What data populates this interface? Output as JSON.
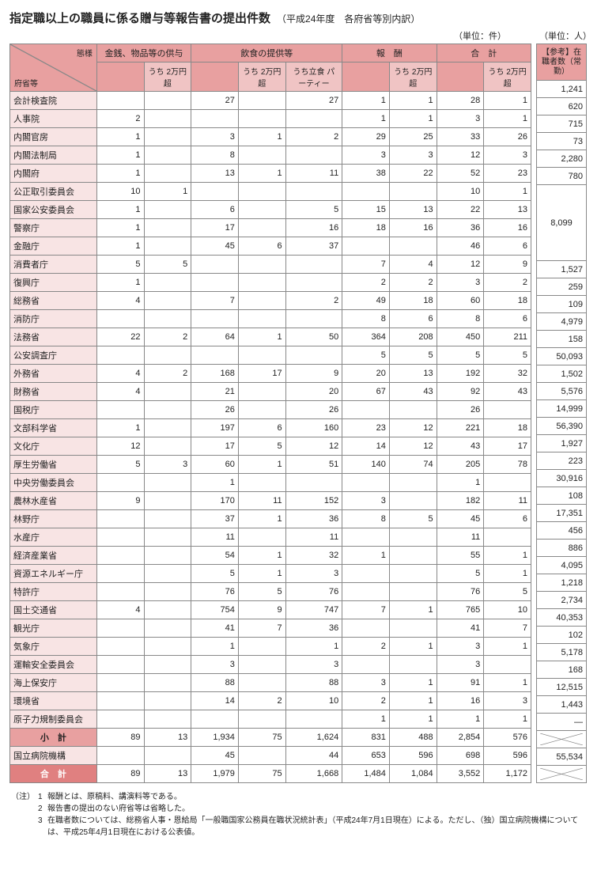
{
  "title": "指定職以上の職員に係る贈与等報告書の提出件数",
  "subtitle": "（平成24年度　各府省等別内訳）",
  "unit1": "（単位：件）",
  "unit2": "（単位：人）",
  "diag_top": "態様",
  "diag_bottom": "府省等",
  "col_groups": {
    "g1": "金銭、物品等の供与",
    "g2": "飲食の提供等",
    "g3": "報　酬",
    "g4": "合　計",
    "ref": "【参考】在職者数（常勤）"
  },
  "sub": {
    "over20k": "うち\n2万円超",
    "party": "うち立食\nパーティー"
  },
  "colors": {
    "hdr": "#e8a0a0",
    "hdr_sub": "#f0c4c4",
    "rowhdr": "#f8e4e4",
    "subtotal": "#e8a0a0",
    "total": "#e08080",
    "border": "#888888"
  },
  "rows": [
    {
      "name": "会計検査院",
      "c": [
        "",
        "",
        "27",
        "",
        "27",
        "1",
        "1",
        "28",
        "1"
      ],
      "ref": "1,241"
    },
    {
      "name": "人事院",
      "c": [
        "2",
        "",
        "",
        "",
        "",
        "1",
        "1",
        "3",
        "1"
      ],
      "ref": "620"
    },
    {
      "name": "内閣官房",
      "c": [
        "1",
        "",
        "3",
        "1",
        "2",
        "29",
        "25",
        "33",
        "26"
      ],
      "ref": "715"
    },
    {
      "name": "内閣法制局",
      "c": [
        "1",
        "",
        "8",
        "",
        "",
        "3",
        "3",
        "12",
        "3"
      ],
      "ref": "73"
    },
    {
      "name": "内閣府",
      "c": [
        "1",
        "",
        "13",
        "1",
        "11",
        "38",
        "22",
        "52",
        "23"
      ],
      "ref": "2,280"
    },
    {
      "name": "公正取引委員会",
      "c": [
        "10",
        "1",
        "",
        "",
        "",
        "",
        "",
        "10",
        "1"
      ],
      "ref": "780"
    },
    {
      "name": "国家公安委員会",
      "c": [
        "1",
        "",
        "6",
        "",
        "5",
        "15",
        "13",
        "22",
        "13"
      ],
      "ref": "",
      "merge": "down"
    },
    {
      "name": "警察庁",
      "c": [
        "1",
        "",
        "17",
        "",
        "16",
        "18",
        "16",
        "36",
        "16"
      ],
      "ref": "8,099",
      "merge": "up"
    },
    {
      "name": "金融庁",
      "c": [
        "1",
        "",
        "45",
        "6",
        "37",
        "",
        "",
        "46",
        "6"
      ],
      "ref": "1,527"
    },
    {
      "name": "消費者庁",
      "c": [
        "5",
        "5",
        "",
        "",
        "",
        "7",
        "4",
        "12",
        "9"
      ],
      "ref": "259"
    },
    {
      "name": "復興庁",
      "c": [
        "1",
        "",
        "",
        "",
        "",
        "2",
        "2",
        "3",
        "2"
      ],
      "ref": "109"
    },
    {
      "name": "総務省",
      "c": [
        "4",
        "",
        "7",
        "",
        "2",
        "49",
        "18",
        "60",
        "18"
      ],
      "ref": "4,979"
    },
    {
      "name": "消防庁",
      "c": [
        "",
        "",
        "",
        "",
        "",
        "8",
        "6",
        "8",
        "6"
      ],
      "ref": "158"
    },
    {
      "name": "法務省",
      "c": [
        "22",
        "2",
        "64",
        "1",
        "50",
        "364",
        "208",
        "450",
        "211"
      ],
      "ref": "50,093"
    },
    {
      "name": "公安調査庁",
      "c": [
        "",
        "",
        "",
        "",
        "",
        "5",
        "5",
        "5",
        "5"
      ],
      "ref": "1,502"
    },
    {
      "name": "外務省",
      "c": [
        "4",
        "2",
        "168",
        "17",
        "9",
        "20",
        "13",
        "192",
        "32"
      ],
      "ref": "5,576"
    },
    {
      "name": "財務省",
      "c": [
        "4",
        "",
        "21",
        "",
        "20",
        "67",
        "43",
        "92",
        "43"
      ],
      "ref": "14,999"
    },
    {
      "name": "国税庁",
      "c": [
        "",
        "",
        "26",
        "",
        "26",
        "",
        "",
        "26",
        ""
      ],
      "ref": "56,390"
    },
    {
      "name": "文部科学省",
      "c": [
        "1",
        "",
        "197",
        "6",
        "160",
        "23",
        "12",
        "221",
        "18"
      ],
      "ref": "1,927"
    },
    {
      "name": "文化庁",
      "c": [
        "12",
        "",
        "17",
        "5",
        "12",
        "14",
        "12",
        "43",
        "17"
      ],
      "ref": "223"
    },
    {
      "name": "厚生労働省",
      "c": [
        "5",
        "3",
        "60",
        "1",
        "51",
        "140",
        "74",
        "205",
        "78"
      ],
      "ref": "30,916"
    },
    {
      "name": "中央労働委員会",
      "c": [
        "",
        "",
        "1",
        "",
        "",
        "",
        "",
        "1",
        ""
      ],
      "ref": "108"
    },
    {
      "name": "農林水産省",
      "c": [
        "9",
        "",
        "170",
        "11",
        "152",
        "3",
        "",
        "182",
        "11"
      ],
      "ref": "17,351"
    },
    {
      "name": "林野庁",
      "c": [
        "",
        "",
        "37",
        "1",
        "36",
        "8",
        "5",
        "45",
        "6"
      ],
      "ref": "456"
    },
    {
      "name": "水産庁",
      "c": [
        "",
        "",
        "11",
        "",
        "11",
        "",
        "",
        "11",
        ""
      ],
      "ref": "886"
    },
    {
      "name": "経済産業省",
      "c": [
        "",
        "",
        "54",
        "1",
        "32",
        "1",
        "",
        "55",
        "1"
      ],
      "ref": "4,095"
    },
    {
      "name": "資源エネルギー庁",
      "c": [
        "",
        "",
        "5",
        "1",
        "3",
        "",
        "",
        "5",
        "1"
      ],
      "ref": "1,218"
    },
    {
      "name": "特許庁",
      "c": [
        "",
        "",
        "76",
        "5",
        "76",
        "",
        "",
        "76",
        "5"
      ],
      "ref": "2,734"
    },
    {
      "name": "国土交通省",
      "c": [
        "4",
        "",
        "754",
        "9",
        "747",
        "7",
        "1",
        "765",
        "10"
      ],
      "ref": "40,353"
    },
    {
      "name": "観光庁",
      "c": [
        "",
        "",
        "41",
        "7",
        "36",
        "",
        "",
        "41",
        "7"
      ],
      "ref": "102"
    },
    {
      "name": "気象庁",
      "c": [
        "",
        "",
        "1",
        "",
        "1",
        "2",
        "1",
        "3",
        "1"
      ],
      "ref": "5,178"
    },
    {
      "name": "運輸安全委員会",
      "c": [
        "",
        "",
        "3",
        "",
        "3",
        "",
        "",
        "3",
        ""
      ],
      "ref": "168"
    },
    {
      "name": "海上保安庁",
      "c": [
        "",
        "",
        "88",
        "",
        "88",
        "3",
        "1",
        "91",
        "1"
      ],
      "ref": "12,515"
    },
    {
      "name": "環境省",
      "c": [
        "",
        "",
        "14",
        "2",
        "10",
        "2",
        "1",
        "16",
        "3"
      ],
      "ref": "1,443"
    },
    {
      "name": "原子力規制委員会",
      "c": [
        "",
        "",
        "",
        "",
        "",
        "1",
        "1",
        "1",
        "1"
      ],
      "ref": "—"
    }
  ],
  "subtotal": {
    "name": "小　計",
    "c": [
      "89",
      "13",
      "1,934",
      "75",
      "1,624",
      "831",
      "488",
      "2,854",
      "576"
    ],
    "ref": "X"
  },
  "hospital": {
    "name": "国立病院機構",
    "c": [
      "",
      "",
      "45",
      "",
      "44",
      "653",
      "596",
      "698",
      "596"
    ],
    "ref": "55,534"
  },
  "total": {
    "name": "合　計",
    "c": [
      "89",
      "13",
      "1,979",
      "75",
      "1,668",
      "1,484",
      "1,084",
      "3,552",
      "1,172"
    ],
    "ref": "X"
  },
  "notes": {
    "head": "（注）",
    "items": [
      {
        "n": "1",
        "t": "報酬とは、原稿料、講演料等である。"
      },
      {
        "n": "2",
        "t": "報告書の提出のない府省等は省略した。"
      },
      {
        "n": "3",
        "t": "在職者数については、総務省人事・恩給局「一般職国家公務員在職状況統計表」（平成24年7月1日現在）による。ただし、（独）国立病院機構については、平成25年4月1日現在における公表値。"
      }
    ]
  }
}
